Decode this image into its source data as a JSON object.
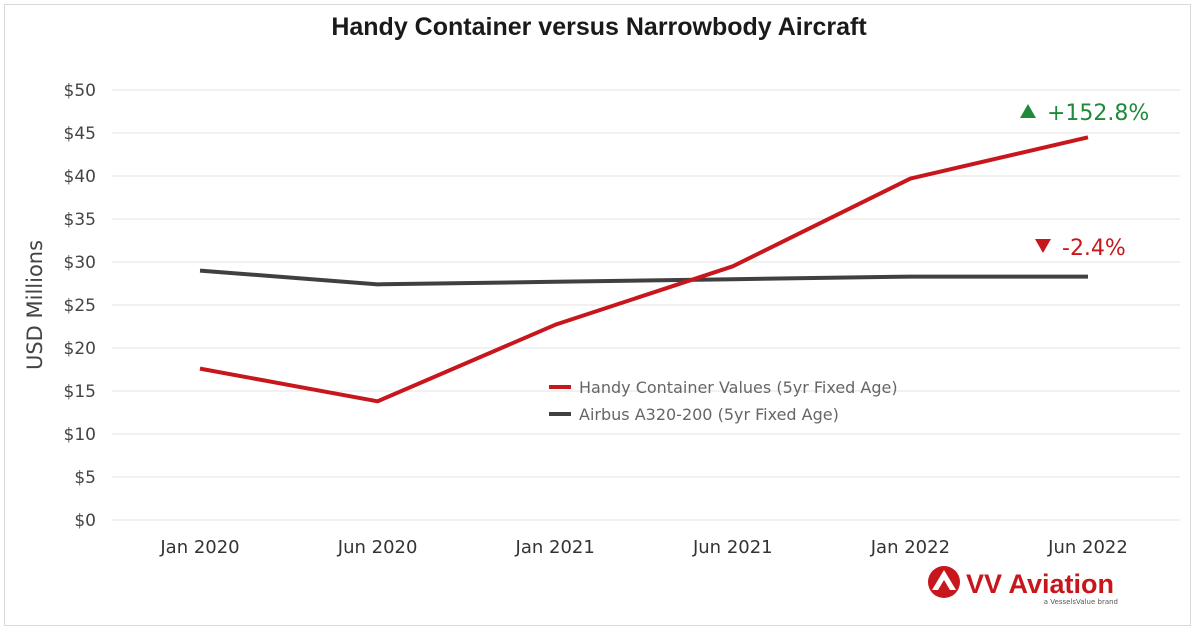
{
  "chart_data": {
    "type": "line",
    "title": "Handy Container versus Narrowbody Aircraft",
    "xlabel": "",
    "ylabel": "USD Millions",
    "categories": [
      "Jan 2020",
      "Jun 2020",
      "Jan 2021",
      "Jun 2021",
      "Jan 2022",
      "Jun 2022"
    ],
    "ylim": [
      0,
      50
    ],
    "yticks": [
      0,
      5,
      10,
      15,
      20,
      25,
      30,
      35,
      40,
      45,
      50
    ],
    "ytick_labels": [
      "$0",
      "$5",
      "$10",
      "$15",
      "$20",
      "$25",
      "$30",
      "$35",
      "$40",
      "$45",
      "$50"
    ],
    "grid": true,
    "legend_position": "center",
    "series": [
      {
        "name": "Handy Container Values (5yr Fixed Age)",
        "color": "#c8161d",
        "values": [
          17.6,
          13.8,
          22.7,
          29.5,
          39.7,
          44.5
        ],
        "change_label": "+152.8%",
        "change_color": "#1f8a3b",
        "change_direction": "up"
      },
      {
        "name": "Airbus A320-200 (5yr Fixed Age)",
        "color": "#404040",
        "values": [
          29.0,
          27.4,
          27.7,
          28.0,
          28.3,
          28.3
        ],
        "change_label": "-2.4%",
        "change_color": "#c8161d",
        "change_direction": "down"
      }
    ]
  },
  "branding": {
    "logo_icon": "vv-aviation-logo-icon",
    "name": "VV Aviation",
    "tagline": "a VesselsValue brand"
  }
}
